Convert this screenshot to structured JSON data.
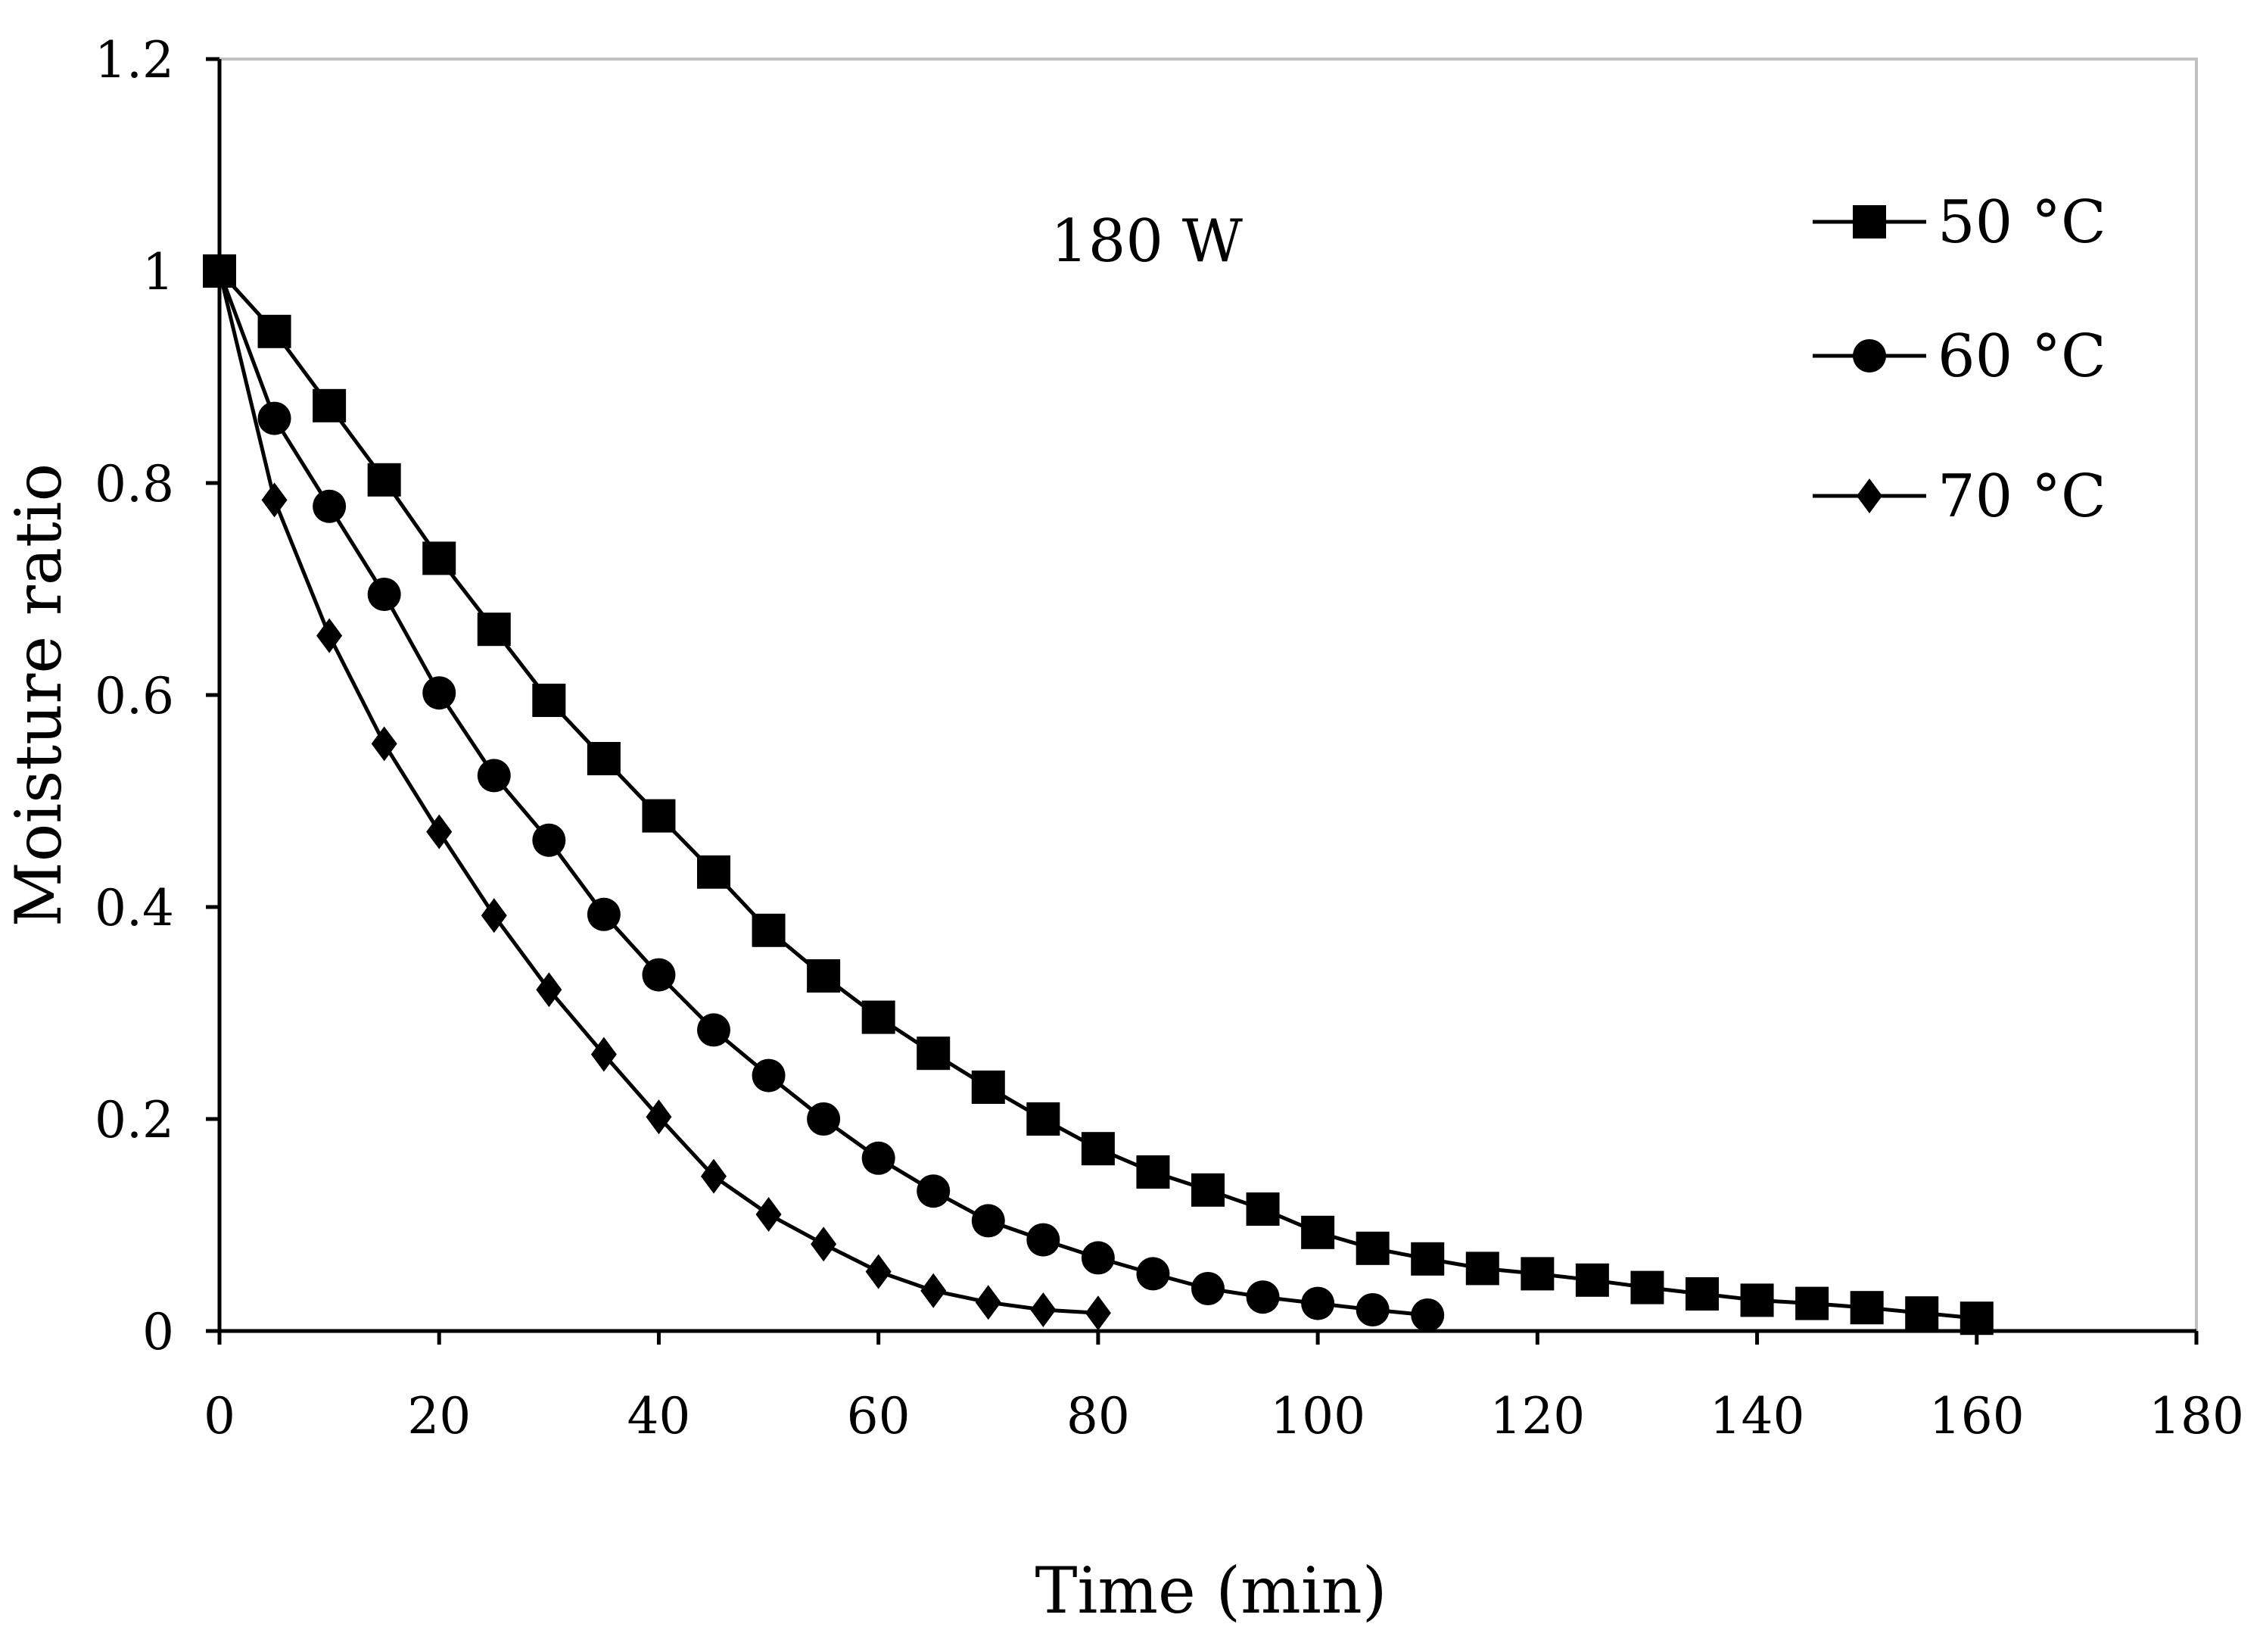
{
  "chart_data": {
    "type": "line",
    "annotation": "180 W",
    "xlabel": "Time (min)",
    "ylabel": "Moisture ratio",
    "xlim": [
      0,
      180
    ],
    "ylim": [
      0,
      1.2
    ],
    "xticks": [
      0,
      20,
      40,
      60,
      80,
      100,
      120,
      140,
      160,
      180
    ],
    "yticks": [
      0,
      0.2,
      0.4,
      0.6,
      0.8,
      1,
      1.2
    ],
    "ytick_labels": [
      "0",
      "0.2",
      "0.4",
      "0.6",
      "0.8",
      "1",
      "1.2"
    ],
    "grid": false,
    "legend_position": "top-right",
    "series": [
      {
        "name": "50 °C",
        "marker": "square",
        "x": [
          0,
          5,
          10,
          15,
          20,
          25,
          30,
          35,
          40,
          45,
          50,
          55,
          60,
          65,
          70,
          75,
          80,
          85,
          90,
          95,
          100,
          105,
          110,
          115,
          120,
          125,
          130,
          135,
          140,
          145,
          150,
          155,
          160
        ],
        "y": [
          1.0,
          0.943,
          0.873,
          0.803,
          0.729,
          0.662,
          0.595,
          0.54,
          0.486,
          0.433,
          0.378,
          0.335,
          0.296,
          0.262,
          0.23,
          0.2,
          0.172,
          0.15,
          0.133,
          0.115,
          0.093,
          0.078,
          0.068,
          0.059,
          0.054,
          0.048,
          0.041,
          0.035,
          0.029,
          0.026,
          0.022,
          0.017,
          0.012
        ]
      },
      {
        "name": "60 °C",
        "marker": "circle",
        "x": [
          0,
          5,
          10,
          15,
          20,
          25,
          30,
          35,
          40,
          45,
          50,
          55,
          60,
          65,
          70,
          75,
          80,
          85,
          90,
          95,
          100,
          105,
          110
        ],
        "y": [
          1.0,
          0.861,
          0.778,
          0.695,
          0.602,
          0.524,
          0.463,
          0.393,
          0.336,
          0.284,
          0.241,
          0.2,
          0.163,
          0.132,
          0.104,
          0.086,
          0.069,
          0.054,
          0.04,
          0.032,
          0.026,
          0.02,
          0.015
        ]
      },
      {
        "name": "70 °C",
        "marker": "diamond",
        "x": [
          0,
          5,
          10,
          15,
          20,
          25,
          30,
          35,
          40,
          45,
          50,
          55,
          60,
          65,
          70,
          75,
          80
        ],
        "y": [
          1.0,
          0.784,
          0.656,
          0.554,
          0.471,
          0.392,
          0.322,
          0.261,
          0.202,
          0.146,
          0.11,
          0.082,
          0.056,
          0.038,
          0.027,
          0.02,
          0.017
        ]
      }
    ]
  }
}
